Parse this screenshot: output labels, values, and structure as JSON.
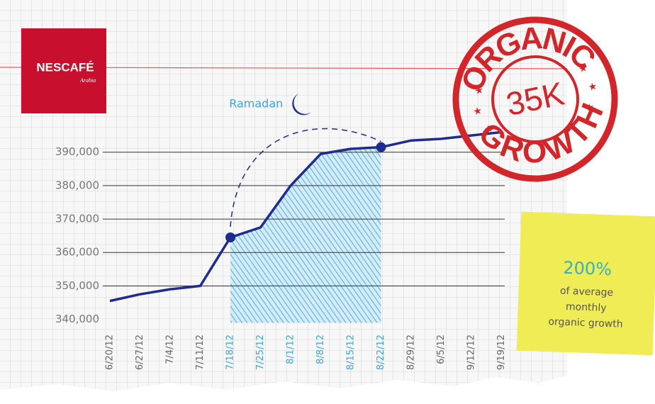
{
  "chart_data": {
    "type": "line",
    "brand": {
      "name": "NESCAFÉ",
      "region": "Arabia"
    },
    "categories": [
      "6/20/12",
      "6/27/12",
      "7/4/12",
      "7/11/12",
      "7/18/12",
      "7/25/12",
      "8/1/12",
      "8/8/12",
      "8/15/12",
      "8/22/12",
      "8/29/12",
      "6/5/12",
      "9/12/12",
      "9/19/12"
    ],
    "series": [
      {
        "color": "#1f2b8e",
        "values": [
          345500,
          347500,
          349000,
          350000,
          364500,
          367500,
          380000,
          389500,
          391000,
          391500,
          393500,
          394000,
          395000,
          396000
        ]
      }
    ],
    "ylim": [
      338000,
      398000
    ],
    "yticks": [
      {
        "value": 340000,
        "label": "340,000"
      },
      {
        "value": 350000,
        "label": "350,000"
      },
      {
        "value": 360000,
        "label": "360,000"
      },
      {
        "value": 370000,
        "label": "370,000"
      },
      {
        "value": 380000,
        "label": "380,000"
      },
      {
        "value": 390000,
        "label": "390,000"
      }
    ],
    "highlight": {
      "label": "Ramadan",
      "from": "7/18/12",
      "to": "8/22/12",
      "color": "#3aa8dc"
    },
    "stamp": {
      "top": "ORGANIC",
      "center": "35K",
      "bottom": "GROWTH",
      "color": "#d3262b"
    },
    "note": {
      "headline": "200%",
      "lines": [
        "of average",
        "monthly",
        "organic growth"
      ]
    }
  }
}
